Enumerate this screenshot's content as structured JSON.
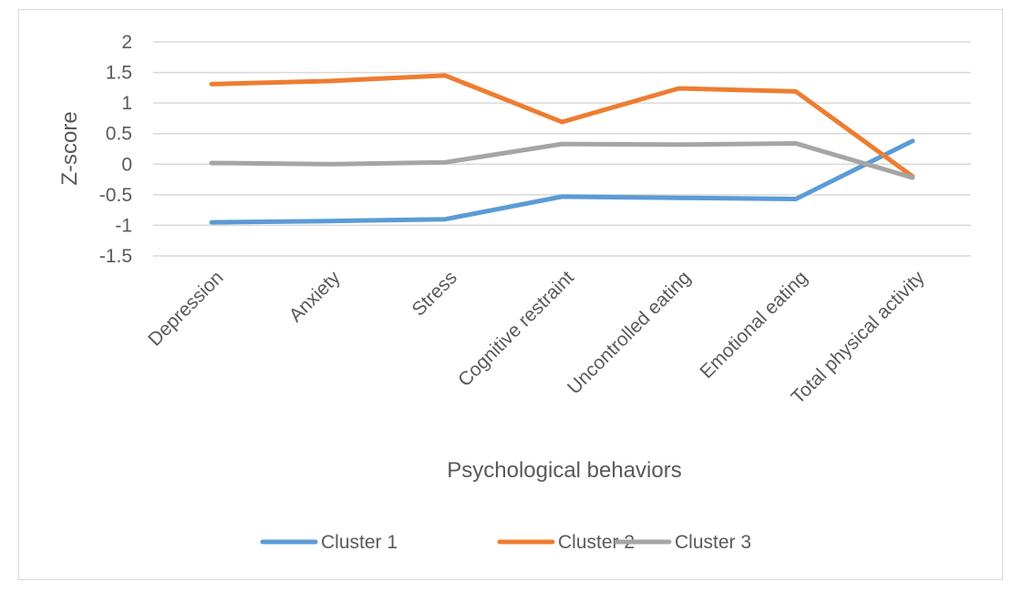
{
  "chart_data": {
    "type": "line",
    "title": "",
    "xlabel": "Psychological behaviors",
    "ylabel": "Z-score",
    "ylim": [
      -1.5,
      2
    ],
    "yticks": [
      2,
      1.5,
      1,
      0.5,
      0,
      -0.5,
      -1,
      -1.5
    ],
    "ytick_labels": [
      "2",
      "1.5",
      "1",
      "0.5",
      "0",
      "-0.5",
      "-1",
      "-1.5"
    ],
    "grid": true,
    "legend_position": "bottom",
    "categories": [
      "Depression",
      "Anxiety",
      "Stress",
      "Cognitive restraint",
      "Uncontrolled eating",
      "Emotional eating",
      "Total physical activity"
    ],
    "series": [
      {
        "name": "Cluster 1",
        "color": "#5b9bd5",
        "values": [
          -0.95,
          -0.93,
          -0.9,
          -0.53,
          -0.55,
          -0.57,
          0.38
        ]
      },
      {
        "name": "Cluster 2",
        "color": "#ed7d31",
        "values": [
          1.31,
          1.36,
          1.45,
          0.69,
          1.24,
          1.19,
          -0.2
        ]
      },
      {
        "name": "Cluster 3",
        "color": "#a5a5a5",
        "values": [
          0.02,
          0.0,
          0.03,
          0.33,
          0.32,
          0.34,
          -0.22
        ]
      }
    ]
  }
}
